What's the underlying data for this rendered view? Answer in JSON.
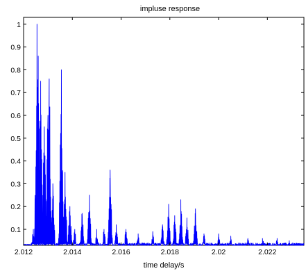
{
  "chart_data": {
    "type": "line",
    "title": "impluse response",
    "xlabel": "time delay/s",
    "ylabel": "",
    "xlim": [
      2.012,
      2.0235
    ],
    "ylim": [
      0.03,
      1.03
    ],
    "grid": false,
    "x_ticks": [
      "2.012",
      "2.014",
      "2.016",
      "2.018",
      "2.02",
      "2.022"
    ],
    "x_tick_values": [
      2.012,
      2.014,
      2.016,
      2.018,
      2.02,
      2.022
    ],
    "y_ticks": [
      "0.1",
      "0.2",
      "0.3",
      "0.4",
      "0.5",
      "0.6",
      "0.7",
      "0.8",
      "0.9",
      "1"
    ],
    "y_tick_values": [
      0.1,
      0.2,
      0.3,
      0.4,
      0.5,
      0.6,
      0.7,
      0.8,
      0.9,
      1.0
    ],
    "line_color": "#0000ff",
    "peaks": [
      {
        "x": 2.0124,
        "y": 0.1
      },
      {
        "x": 2.01255,
        "y": 1.0
      },
      {
        "x": 2.0126,
        "y": 0.86
      },
      {
        "x": 2.0127,
        "y": 0.75
      },
      {
        "x": 2.01285,
        "y": 0.55
      },
      {
        "x": 2.013,
        "y": 0.6
      },
      {
        "x": 2.01305,
        "y": 0.76
      },
      {
        "x": 2.0132,
        "y": 0.3
      },
      {
        "x": 2.01355,
        "y": 0.8
      },
      {
        "x": 2.0137,
        "y": 0.35
      },
      {
        "x": 2.0139,
        "y": 0.2
      },
      {
        "x": 2.0141,
        "y": 0.1
      },
      {
        "x": 2.0144,
        "y": 0.17
      },
      {
        "x": 2.0147,
        "y": 0.25
      },
      {
        "x": 2.015,
        "y": 0.1
      },
      {
        "x": 2.0153,
        "y": 0.1
      },
      {
        "x": 2.01555,
        "y": 0.36
      },
      {
        "x": 2.0158,
        "y": 0.12
      },
      {
        "x": 2.0162,
        "y": 0.1
      },
      {
        "x": 2.0167,
        "y": 0.08
      },
      {
        "x": 2.0173,
        "y": 0.09
      },
      {
        "x": 2.0177,
        "y": 0.12
      },
      {
        "x": 2.01795,
        "y": 0.21
      },
      {
        "x": 2.0182,
        "y": 0.16
      },
      {
        "x": 2.01845,
        "y": 0.23
      },
      {
        "x": 2.0187,
        "y": 0.15
      },
      {
        "x": 2.01905,
        "y": 0.19
      },
      {
        "x": 2.0194,
        "y": 0.08
      },
      {
        "x": 2.02,
        "y": 0.08
      },
      {
        "x": 2.0205,
        "y": 0.07
      },
      {
        "x": 2.0212,
        "y": 0.06
      },
      {
        "x": 2.0218,
        "y": 0.06
      },
      {
        "x": 2.0224,
        "y": 0.06
      },
      {
        "x": 2.0229,
        "y": 0.05
      }
    ]
  }
}
